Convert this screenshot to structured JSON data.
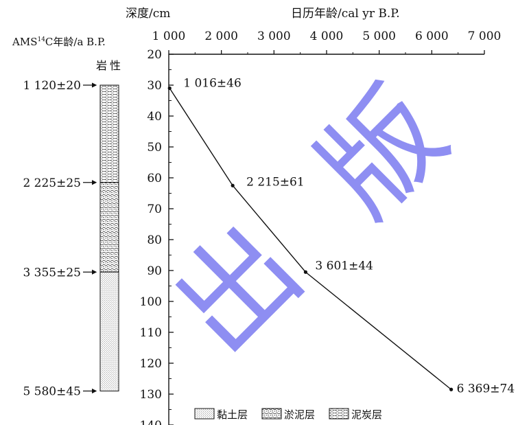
{
  "chart_data": {
    "type": "line",
    "depth_label": "深度/cm",
    "age_axis_label": "日历年龄/cal yr B.P.",
    "age_ticks": [
      "1 000",
      "2 000",
      "3 000",
      "4 000",
      "5 000",
      "6 000",
      "7 000"
    ],
    "age_range": [
      1000,
      7000
    ],
    "depth_range": [
      20,
      140
    ],
    "depth_ticks": [
      "20",
      "30",
      "40",
      "50",
      "60",
      "70",
      "80",
      "90",
      "100",
      "110",
      "120",
      "130",
      "140"
    ],
    "series": [
      {
        "points": [
          {
            "age": 1016,
            "depth": 31,
            "label": "1 016±46"
          },
          {
            "age": 2215,
            "depth": 62.5,
            "label": "2 215±61"
          },
          {
            "age": 3601,
            "depth": 90.5,
            "label": "3 601±44"
          },
          {
            "age": 6369,
            "depth": 128.5,
            "label": "6 369±74"
          }
        ]
      }
    ],
    "ams_label_prefix": "AMS",
    "ams_label_sup": "14",
    "ams_label_suffix": "C年龄/a B.P.",
    "lithology_label": "岩性",
    "ams_dates": [
      {
        "text": "1 120±20",
        "depth": 30
      },
      {
        "text": "2 225±25",
        "depth": 61.5
      },
      {
        "text": "3 355±25",
        "depth": 90.5
      },
      {
        "text": "5 580±45",
        "depth": 129
      }
    ],
    "lithology_layers": [
      {
        "name": "泥炭层",
        "pattern": "peat",
        "top": 30,
        "bottom": 61.5
      },
      {
        "name": "淤泥层",
        "pattern": "silt",
        "top": 61.5,
        "bottom": 90.5
      },
      {
        "name": "黏土层",
        "pattern": "clay",
        "top": 90.5,
        "bottom": 129
      }
    ],
    "legend": [
      {
        "name": "黏土层",
        "pattern": "clay"
      },
      {
        "name": "淤泥层",
        "pattern": "silt"
      },
      {
        "name": "泥炭层",
        "pattern": "peat"
      }
    ],
    "watermark": [
      "出",
      "版"
    ],
    "colors": {
      "line": "#111111",
      "watermark": "#7b7bf0"
    }
  }
}
